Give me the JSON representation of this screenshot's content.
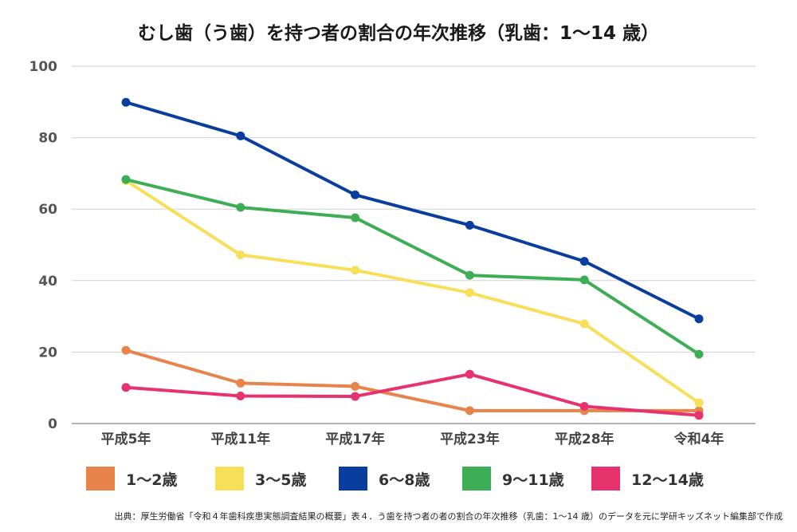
{
  "chart_data": {
    "type": "line",
    "title": "むし歯（う歯）を持つ者の割合の年次推移（乳歯：1〜14 歳）",
    "categories": [
      "平成5年",
      "平成11年",
      "平成17年",
      "平成23年",
      "平成28年",
      "令和4年"
    ],
    "ylim": [
      0,
      100
    ],
    "yticks": [
      0,
      20,
      40,
      60,
      80,
      100
    ],
    "grid": true,
    "legend_position": "bottom",
    "series": [
      {
        "name": "1〜2歳",
        "color": "#E8834A",
        "values": [
          20.5,
          11.3,
          10.4,
          3.6,
          3.6,
          3.6
        ]
      },
      {
        "name": "3〜5歳",
        "color": "#F7DF5A",
        "values": [
          68.0,
          47.2,
          42.9,
          36.6,
          27.9,
          5.8
        ]
      },
      {
        "name": "6〜8歳",
        "color": "#0A3E9E",
        "values": [
          89.9,
          80.5,
          64.0,
          55.5,
          45.4,
          29.3
        ]
      },
      {
        "name": "9〜11歳",
        "color": "#3DAE55",
        "values": [
          68.3,
          60.5,
          57.6,
          41.5,
          40.2,
          19.4
        ]
      },
      {
        "name": "12〜14歳",
        "color": "#E6336E",
        "values": [
          10.1,
          7.7,
          7.6,
          13.8,
          4.8,
          2.3
        ]
      }
    ]
  },
  "source": "出典：厚生労働省「令和４年歯科疾患実態調査結果の概要」表４．う歯を持つ者の者の割合の年次推移（乳歯：1〜14 歳）のデータを元に学研キッズネット編集部で作成"
}
